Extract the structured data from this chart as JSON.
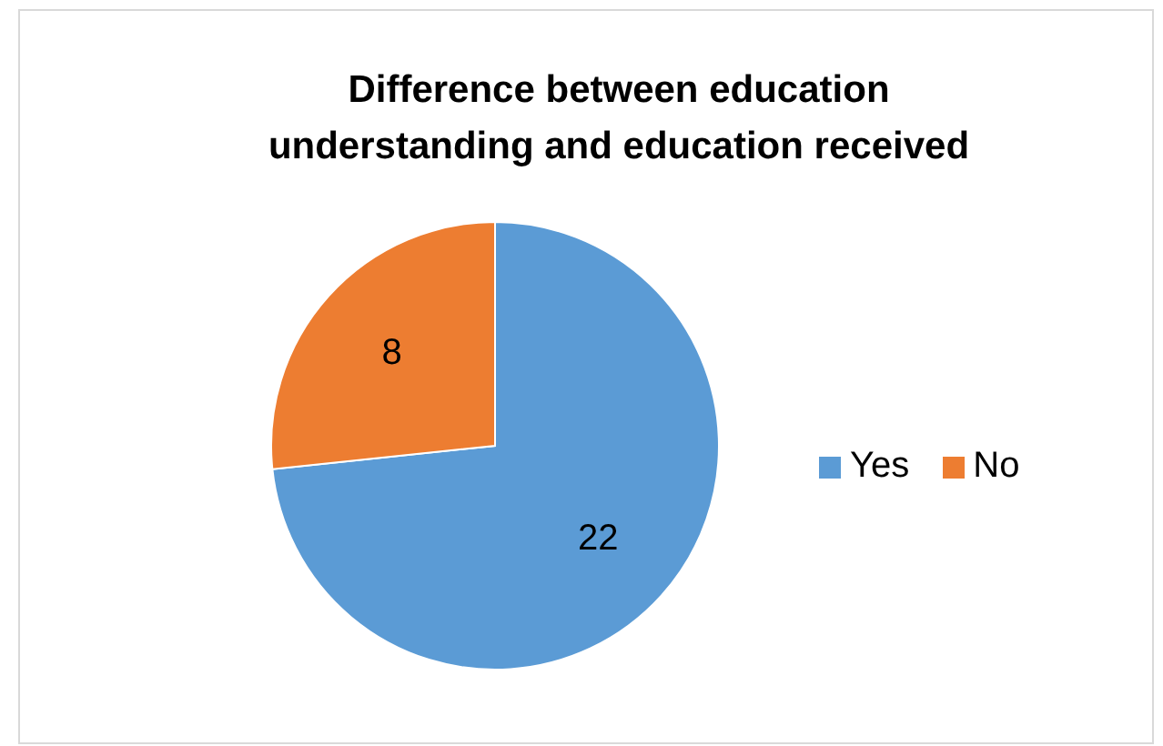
{
  "chart_data": {
    "type": "pie",
    "title": "Difference between education understanding and education received",
    "categories": [
      "Yes",
      "No"
    ],
    "values": [
      22,
      8
    ],
    "colors": [
      "#5b9bd5",
      "#ed7d31"
    ],
    "data_labels": true,
    "legend": "right"
  }
}
